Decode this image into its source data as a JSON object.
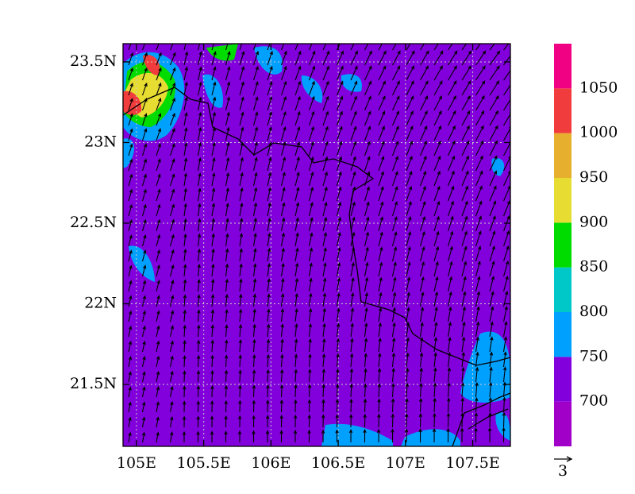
{
  "map": {
    "xlim": [
      104.9,
      107.78
    ],
    "ylim": [
      21.116,
      23.613
    ],
    "xticks": [
      {
        "value": 105,
        "label": "105E"
      },
      {
        "value": 105.5,
        "label": "105.5E"
      },
      {
        "value": 106,
        "label": "106E"
      },
      {
        "value": 106.5,
        "label": "106.5E"
      },
      {
        "value": 107,
        "label": "107E"
      },
      {
        "value": 107.5,
        "label": "107.5E"
      }
    ],
    "yticks": [
      {
        "value": 23.5,
        "label": "23.5N"
      },
      {
        "value": 23,
        "label": "23N"
      },
      {
        "value": 22.5,
        "label": "22.5N"
      },
      {
        "value": 22,
        "label": "22N"
      },
      {
        "value": 21.5,
        "label": "21.5N"
      }
    ],
    "grid": true,
    "colorbar": {
      "clim": [
        650,
        1100
      ],
      "levels": [
        700,
        750,
        800,
        850,
        900,
        950,
        1000,
        1050
      ],
      "colors": [
        "#a000c8",
        "#8200dc",
        "#00a0ff",
        "#00c8c8",
        "#00dc00",
        "#e6dc32",
        "#e6af2d",
        "#f03c3c",
        "#f00082"
      ]
    },
    "vector_reference": "3"
  }
}
